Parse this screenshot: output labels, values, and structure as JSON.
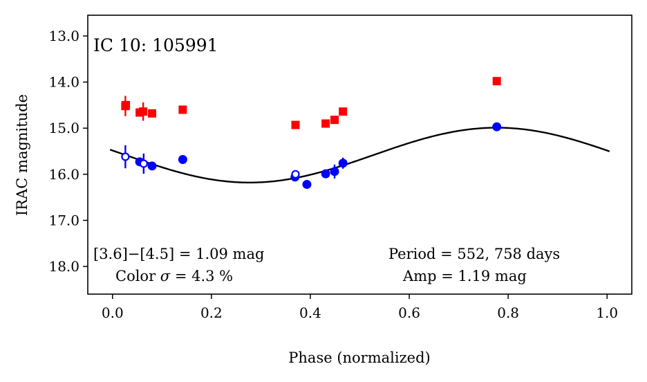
{
  "chart_data": {
    "type": "scatter",
    "title": "IC 10:  105991",
    "xlabel": "Phase (normalized)",
    "ylabel": "IRAC magnitude",
    "xlim": [
      -0.05,
      1.05
    ],
    "ylim": [
      18.6,
      12.55
    ],
    "y_inverted": true,
    "grid": false,
    "xticks": [
      0.0,
      0.2,
      0.4,
      0.6,
      0.8,
      1.0
    ],
    "xtick_labels": [
      "0.0",
      "0.2",
      "0.4",
      "0.6",
      "0.8",
      "1.0"
    ],
    "yticks": [
      13.0,
      14.0,
      15.0,
      16.0,
      17.0,
      18.0
    ],
    "ytick_labels": [
      "13.0",
      "14.0",
      "15.0",
      "16.0",
      "17.0",
      "18.0"
    ],
    "series": [
      {
        "name": "[4.5]",
        "marker": "square",
        "color": "#ff0000",
        "points": [
          {
            "x": 0.026,
            "y": 14.52,
            "err": 0.22
          },
          {
            "x": 0.027,
            "y": 14.5,
            "err": 0.0
          },
          {
            "x": 0.055,
            "y": 14.66,
            "err": 0.0
          },
          {
            "x": 0.062,
            "y": 14.64,
            "err": 0.2
          },
          {
            "x": 0.08,
            "y": 14.68,
            "err": 0.0
          },
          {
            "x": 0.142,
            "y": 14.6,
            "err": 0.0
          },
          {
            "x": 0.37,
            "y": 14.93,
            "err": 0.0
          },
          {
            "x": 0.431,
            "y": 14.9,
            "err": 0.0
          },
          {
            "x": 0.449,
            "y": 14.82,
            "err": 0.0
          },
          {
            "x": 0.466,
            "y": 14.64,
            "err": 0.0
          },
          {
            "x": 0.777,
            "y": 13.98,
            "err": 0.0
          }
        ]
      },
      {
        "name": "[3.6]",
        "marker": "circle",
        "color": "#0000ff",
        "points": [
          {
            "x": 0.026,
            "y": 15.62,
            "err": 0.25,
            "open": true
          },
          {
            "x": 0.055,
            "y": 15.73,
            "err": 0.0
          },
          {
            "x": 0.063,
            "y": 15.77,
            "err": 0.22,
            "open": true
          },
          {
            "x": 0.08,
            "y": 15.82,
            "err": 0.0
          },
          {
            "x": 0.142,
            "y": 15.68,
            "err": 0.0
          },
          {
            "x": 0.369,
            "y": 16.06,
            "err": 0.0
          },
          {
            "x": 0.37,
            "y": 16.0,
            "err": 0.0,
            "open": true
          },
          {
            "x": 0.393,
            "y": 16.22,
            "err": 0.0
          },
          {
            "x": 0.431,
            "y": 15.99,
            "err": 0.0
          },
          {
            "x": 0.449,
            "y": 15.94,
            "err": 0.15
          },
          {
            "x": 0.466,
            "y": 15.76,
            "err": 0.12
          },
          {
            "x": 0.777,
            "y": 14.97,
            "err": 0.0
          }
        ]
      }
    ],
    "model_curve": {
      "name": "sinusoid fit",
      "color": "#000000",
      "mean": 15.585,
      "amplitude": 0.595,
      "phase_of_max_brightness": 0.777,
      "x_range": [
        -0.005,
        1.005
      ]
    },
    "annotations": {
      "color_line": "[3.6]−[4.5] = 1.09 mag",
      "color_sigma_prefix": "Color ",
      "color_sigma_symbol": "σ",
      "color_sigma_suffix": " = 4.3 %",
      "period": "Period = 552, 758 days",
      "amp": "Amp = 1.19 mag"
    }
  }
}
